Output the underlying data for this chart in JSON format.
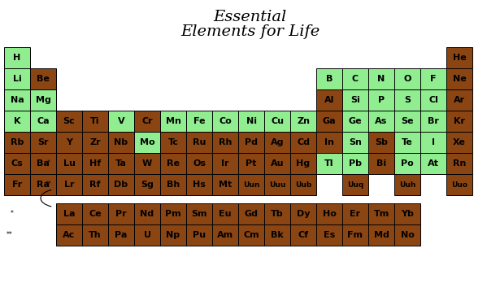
{
  "title_line1": "Essential",
  "title_line2": "Elements for Life",
  "bg_color": "#ffffff",
  "green": "#90EE90",
  "brown": "#8B4513",
  "text_color": "#000000",
  "elements": [
    {
      "symbol": "H",
      "row": 0,
      "col": 0,
      "color": "green"
    },
    {
      "symbol": "He",
      "row": 0,
      "col": 17,
      "color": "brown"
    },
    {
      "symbol": "Li",
      "row": 1,
      "col": 0,
      "color": "green"
    },
    {
      "symbol": "Be",
      "row": 1,
      "col": 1,
      "color": "brown"
    },
    {
      "symbol": "B",
      "row": 1,
      "col": 12,
      "color": "green"
    },
    {
      "symbol": "C",
      "row": 1,
      "col": 13,
      "color": "green"
    },
    {
      "symbol": "N",
      "row": 1,
      "col": 14,
      "color": "green"
    },
    {
      "symbol": "O",
      "row": 1,
      "col": 15,
      "color": "green"
    },
    {
      "symbol": "F",
      "row": 1,
      "col": 16,
      "color": "green"
    },
    {
      "symbol": "Ne",
      "row": 1,
      "col": 17,
      "color": "brown"
    },
    {
      "symbol": "Na",
      "row": 2,
      "col": 0,
      "color": "green"
    },
    {
      "symbol": "Mg",
      "row": 2,
      "col": 1,
      "color": "green"
    },
    {
      "symbol": "Al",
      "row": 2,
      "col": 12,
      "color": "brown"
    },
    {
      "symbol": "Si",
      "row": 2,
      "col": 13,
      "color": "green"
    },
    {
      "symbol": "P",
      "row": 2,
      "col": 14,
      "color": "green"
    },
    {
      "symbol": "S",
      "row": 2,
      "col": 15,
      "color": "green"
    },
    {
      "symbol": "Cl",
      "row": 2,
      "col": 16,
      "color": "green"
    },
    {
      "symbol": "Ar",
      "row": 2,
      "col": 17,
      "color": "brown"
    },
    {
      "symbol": "K",
      "row": 3,
      "col": 0,
      "color": "green"
    },
    {
      "symbol": "Ca",
      "row": 3,
      "col": 1,
      "color": "green"
    },
    {
      "symbol": "Sc",
      "row": 3,
      "col": 2,
      "color": "brown"
    },
    {
      "symbol": "Ti",
      "row": 3,
      "col": 3,
      "color": "brown"
    },
    {
      "symbol": "V",
      "row": 3,
      "col": 4,
      "color": "green"
    },
    {
      "symbol": "Cr",
      "row": 3,
      "col": 5,
      "color": "brown"
    },
    {
      "symbol": "Mn",
      "row": 3,
      "col": 6,
      "color": "green"
    },
    {
      "symbol": "Fe",
      "row": 3,
      "col": 7,
      "color": "green"
    },
    {
      "symbol": "Co",
      "row": 3,
      "col": 8,
      "color": "green"
    },
    {
      "symbol": "Ni",
      "row": 3,
      "col": 9,
      "color": "green"
    },
    {
      "symbol": "Cu",
      "row": 3,
      "col": 10,
      "color": "green"
    },
    {
      "symbol": "Zn",
      "row": 3,
      "col": 11,
      "color": "green"
    },
    {
      "symbol": "Ga",
      "row": 3,
      "col": 12,
      "color": "brown"
    },
    {
      "symbol": "Ge",
      "row": 3,
      "col": 13,
      "color": "green"
    },
    {
      "symbol": "As",
      "row": 3,
      "col": 14,
      "color": "green"
    },
    {
      "symbol": "Se",
      "row": 3,
      "col": 15,
      "color": "green"
    },
    {
      "symbol": "Br",
      "row": 3,
      "col": 16,
      "color": "green"
    },
    {
      "symbol": "Kr",
      "row": 3,
      "col": 17,
      "color": "brown"
    },
    {
      "symbol": "Rb",
      "row": 4,
      "col": 0,
      "color": "brown"
    },
    {
      "symbol": "Sr",
      "row": 4,
      "col": 1,
      "color": "brown"
    },
    {
      "symbol": "Y",
      "row": 4,
      "col": 2,
      "color": "brown"
    },
    {
      "symbol": "Zr",
      "row": 4,
      "col": 3,
      "color": "brown"
    },
    {
      "symbol": "Nb",
      "row": 4,
      "col": 4,
      "color": "brown"
    },
    {
      "symbol": "Mo",
      "row": 4,
      "col": 5,
      "color": "green"
    },
    {
      "symbol": "Tc",
      "row": 4,
      "col": 6,
      "color": "brown"
    },
    {
      "symbol": "Ru",
      "row": 4,
      "col": 7,
      "color": "brown"
    },
    {
      "symbol": "Rh",
      "row": 4,
      "col": 8,
      "color": "brown"
    },
    {
      "symbol": "Pd",
      "row": 4,
      "col": 9,
      "color": "brown"
    },
    {
      "symbol": "Ag",
      "row": 4,
      "col": 10,
      "color": "brown"
    },
    {
      "symbol": "Cd",
      "row": 4,
      "col": 11,
      "color": "brown"
    },
    {
      "symbol": "In",
      "row": 4,
      "col": 12,
      "color": "brown"
    },
    {
      "symbol": "Sn",
      "row": 4,
      "col": 13,
      "color": "green"
    },
    {
      "symbol": "Sb",
      "row": 4,
      "col": 14,
      "color": "brown"
    },
    {
      "symbol": "Te",
      "row": 4,
      "col": 15,
      "color": "green"
    },
    {
      "symbol": "I",
      "row": 4,
      "col": 16,
      "color": "green"
    },
    {
      "symbol": "Xe",
      "row": 4,
      "col": 17,
      "color": "brown"
    },
    {
      "symbol": "Cs",
      "row": 5,
      "col": 0,
      "color": "brown"
    },
    {
      "symbol": "Ba",
      "row": 5,
      "col": 1,
      "color": "brown"
    },
    {
      "symbol": "Lu",
      "row": 5,
      "col": 2,
      "color": "brown"
    },
    {
      "symbol": "Hf",
      "row": 5,
      "col": 3,
      "color": "brown"
    },
    {
      "symbol": "Ta",
      "row": 5,
      "col": 4,
      "color": "brown"
    },
    {
      "symbol": "W",
      "row": 5,
      "col": 5,
      "color": "brown"
    },
    {
      "symbol": "Re",
      "row": 5,
      "col": 6,
      "color": "brown"
    },
    {
      "symbol": "Os",
      "row": 5,
      "col": 7,
      "color": "brown"
    },
    {
      "symbol": "Ir",
      "row": 5,
      "col": 8,
      "color": "brown"
    },
    {
      "symbol": "Pt",
      "row": 5,
      "col": 9,
      "color": "brown"
    },
    {
      "symbol": "Au",
      "row": 5,
      "col": 10,
      "color": "brown"
    },
    {
      "symbol": "Hg",
      "row": 5,
      "col": 11,
      "color": "brown"
    },
    {
      "symbol": "Tl",
      "row": 5,
      "col": 12,
      "color": "green"
    },
    {
      "symbol": "Pb",
      "row": 5,
      "col": 13,
      "color": "green"
    },
    {
      "symbol": "Bi",
      "row": 5,
      "col": 14,
      "color": "brown"
    },
    {
      "symbol": "Po",
      "row": 5,
      "col": 15,
      "color": "green"
    },
    {
      "symbol": "At",
      "row": 5,
      "col": 16,
      "color": "green"
    },
    {
      "symbol": "Rn",
      "row": 5,
      "col": 17,
      "color": "brown"
    },
    {
      "symbol": "Fr",
      "row": 6,
      "col": 0,
      "color": "brown"
    },
    {
      "symbol": "Ra",
      "row": 6,
      "col": 1,
      "color": "brown"
    },
    {
      "symbol": "Lr",
      "row": 6,
      "col": 2,
      "color": "brown"
    },
    {
      "symbol": "Rf",
      "row": 6,
      "col": 3,
      "color": "brown"
    },
    {
      "symbol": "Db",
      "row": 6,
      "col": 4,
      "color": "brown"
    },
    {
      "symbol": "Sg",
      "row": 6,
      "col": 5,
      "color": "brown"
    },
    {
      "symbol": "Bh",
      "row": 6,
      "col": 6,
      "color": "brown"
    },
    {
      "symbol": "Hs",
      "row": 6,
      "col": 7,
      "color": "brown"
    },
    {
      "symbol": "Mt",
      "row": 6,
      "col": 8,
      "color": "brown"
    },
    {
      "symbol": "Uun",
      "row": 6,
      "col": 9,
      "color": "brown"
    },
    {
      "symbol": "Uuu",
      "row": 6,
      "col": 10,
      "color": "brown"
    },
    {
      "symbol": "Uub",
      "row": 6,
      "col": 11,
      "color": "brown"
    },
    {
      "symbol": "Uuq",
      "row": 6,
      "col": 13,
      "color": "brown"
    },
    {
      "symbol": "Uuh",
      "row": 6,
      "col": 15,
      "color": "brown"
    },
    {
      "symbol": "Uuo",
      "row": 6,
      "col": 17,
      "color": "brown"
    },
    {
      "symbol": "La",
      "row": 8,
      "col": 2,
      "color": "brown"
    },
    {
      "symbol": "Ce",
      "row": 8,
      "col": 3,
      "color": "brown"
    },
    {
      "symbol": "Pr",
      "row": 8,
      "col": 4,
      "color": "brown"
    },
    {
      "symbol": "Nd",
      "row": 8,
      "col": 5,
      "color": "brown"
    },
    {
      "symbol": "Pm",
      "row": 8,
      "col": 6,
      "color": "brown"
    },
    {
      "symbol": "Sm",
      "row": 8,
      "col": 7,
      "color": "brown"
    },
    {
      "symbol": "Eu",
      "row": 8,
      "col": 8,
      "color": "brown"
    },
    {
      "symbol": "Gd",
      "row": 8,
      "col": 9,
      "color": "brown"
    },
    {
      "symbol": "Tb",
      "row": 8,
      "col": 10,
      "color": "brown"
    },
    {
      "symbol": "Dy",
      "row": 8,
      "col": 11,
      "color": "brown"
    },
    {
      "symbol": "Ho",
      "row": 8,
      "col": 12,
      "color": "brown"
    },
    {
      "symbol": "Er",
      "row": 8,
      "col": 13,
      "color": "brown"
    },
    {
      "symbol": "Tm",
      "row": 8,
      "col": 14,
      "color": "brown"
    },
    {
      "symbol": "Yb",
      "row": 8,
      "col": 15,
      "color": "brown"
    },
    {
      "symbol": "Ac",
      "row": 9,
      "col": 2,
      "color": "brown"
    },
    {
      "symbol": "Th",
      "row": 9,
      "col": 3,
      "color": "brown"
    },
    {
      "symbol": "Pa",
      "row": 9,
      "col": 4,
      "color": "brown"
    },
    {
      "symbol": "U",
      "row": 9,
      "col": 5,
      "color": "brown"
    },
    {
      "symbol": "Np",
      "row": 9,
      "col": 6,
      "color": "brown"
    },
    {
      "symbol": "Pu",
      "row": 9,
      "col": 7,
      "color": "brown"
    },
    {
      "symbol": "Am",
      "row": 9,
      "col": 8,
      "color": "brown"
    },
    {
      "symbol": "Cm",
      "row": 9,
      "col": 9,
      "color": "brown"
    },
    {
      "symbol": "Bk",
      "row": 9,
      "col": 10,
      "color": "brown"
    },
    {
      "symbol": "Cf",
      "row": 9,
      "col": 11,
      "color": "brown"
    },
    {
      "symbol": "Es",
      "row": 9,
      "col": 12,
      "color": "brown"
    },
    {
      "symbol": "Fm",
      "row": 9,
      "col": 13,
      "color": "brown"
    },
    {
      "symbol": "Md",
      "row": 9,
      "col": 14,
      "color": "brown"
    },
    {
      "symbol": "No",
      "row": 9,
      "col": 15,
      "color": "brown"
    }
  ]
}
